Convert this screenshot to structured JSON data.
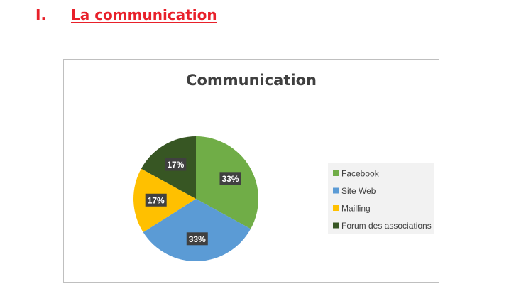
{
  "heading": {
    "number": "I.",
    "text": "La communication"
  },
  "chart_data": {
    "type": "pie",
    "title": "Communication",
    "categories": [
      "Facebook",
      "Site Web",
      "Mailling",
      "Forum des associations"
    ],
    "values": [
      33,
      33,
      17,
      17
    ],
    "data_labels": [
      "33%",
      "33%",
      "17%",
      "17%"
    ],
    "colors": [
      "#70ad47",
      "#5b9bd5",
      "#ffc000",
      "#375623"
    ],
    "legend_position": "right"
  }
}
